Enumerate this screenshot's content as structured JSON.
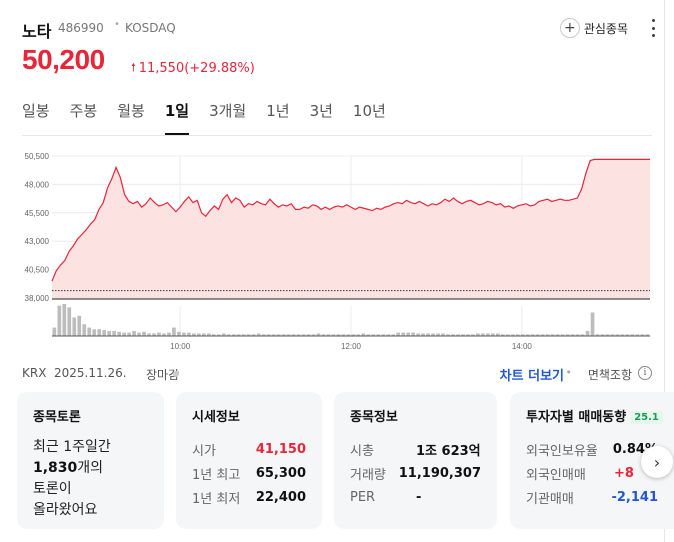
{
  "stock": {
    "name": "노타",
    "code": "486990",
    "market": "KOSDAQ",
    "price": "50,200",
    "change": "11,550(+29.88%)",
    "up_color": "#e8263a"
  },
  "header": {
    "favorite_label": "관심종목",
    "plus_icon": "+"
  },
  "tabs": [
    {
      "label": "일봉",
      "active": false
    },
    {
      "label": "주봉",
      "active": false
    },
    {
      "label": "월봉",
      "active": false
    },
    {
      "label": "1일",
      "active": true
    },
    {
      "label": "3개월",
      "active": false
    },
    {
      "label": "1년",
      "active": false
    },
    {
      "label": "3년",
      "active": false
    },
    {
      "label": "10년",
      "active": false
    }
  ],
  "meta": {
    "exchange": "KRX",
    "date": "2025.11.26.",
    "status": "장마감",
    "more_chart": "차트 더보기",
    "disclaimer": "면책조항",
    "info_icon": "i"
  },
  "chart_data": {
    "type": "area",
    "y_ticks": [
      "50,500",
      "48,000",
      "45,500",
      "43,000",
      "40,500",
      "38,000"
    ],
    "ylim": [
      38000,
      50500
    ],
    "x_ticks": [
      "10:00",
      "12:00",
      "14:00"
    ],
    "prev_close": 38650,
    "series": [
      {
        "values": [
          39500,
          40400,
          40900,
          41300,
          42100,
          42600,
          43200,
          43600,
          44000,
          44500,
          44900,
          45800,
          46400,
          47700,
          48500,
          49500,
          48600,
          47100,
          46500,
          46300,
          46500,
          46000,
          46300,
          46800,
          46400,
          46100,
          46200,
          46400,
          46000,
          45600,
          46000,
          46500,
          46900,
          46400,
          46600,
          45500,
          45200,
          45700,
          46100,
          45800,
          46700,
          47100,
          46400,
          46800,
          46600,
          46000,
          46300,
          46200,
          46500,
          46300,
          46200,
          46700,
          46300,
          46000,
          46200,
          46100,
          46300,
          45800,
          45800,
          46000,
          45900,
          46200,
          46100,
          45800,
          46000,
          45800,
          46000,
          46100,
          46000,
          46200,
          46000,
          45800,
          46000,
          45900,
          45800,
          45700,
          45900,
          45800,
          46000,
          46100,
          46300,
          46400,
          46300,
          46600,
          46400,
          46300,
          46500,
          46300,
          46100,
          46300,
          46200,
          46400,
          46700,
          46500,
          46800,
          46500,
          46300,
          46500,
          46600,
          46400,
          46200,
          46300,
          46500,
          46400,
          46200,
          46300,
          46000,
          46100,
          45900,
          46100,
          46200,
          46300,
          46100,
          46200,
          46500,
          46600,
          46700,
          46500,
          46600,
          46700,
          46600,
          46600,
          46700,
          46800,
          47600,
          49000,
          50100,
          50200,
          50200,
          50200,
          50200,
          50200,
          50200,
          50200,
          50200,
          50200,
          50200,
          50200,
          50200,
          50200,
          50200
        ]
      }
    ],
    "volume": [
      10,
      36,
      38,
      34,
      22,
      24,
      14,
      10,
      8,
      8,
      7,
      6,
      6,
      5,
      4,
      4,
      6,
      4,
      5,
      3,
      3,
      4,
      3,
      4,
      10,
      5,
      4,
      4,
      3,
      3,
      3,
      3,
      2,
      2,
      3,
      2,
      2,
      2,
      2,
      2,
      2,
      3,
      2,
      2,
      2,
      2,
      2,
      2,
      2,
      2,
      2,
      2,
      2,
      3,
      2,
      2,
      2,
      2,
      2,
      2,
      2,
      2,
      3,
      2,
      2,
      2,
      2,
      2,
      2,
      4,
      4,
      4,
      4,
      3,
      3,
      3,
      3,
      3,
      3,
      2,
      2,
      2,
      2,
      2,
      2,
      3,
      3,
      3,
      3,
      3,
      2,
      2,
      2,
      2,
      2,
      2,
      2,
      2,
      2,
      2,
      2,
      2,
      2,
      2,
      2,
      2,
      2,
      6,
      28,
      2,
      2,
      2,
      2,
      2,
      2,
      2,
      2,
      2,
      2,
      2
    ]
  },
  "cards": {
    "discussion": {
      "title": "종목토론",
      "line1": "최근 1주일간",
      "count": "1,830",
      "line2_suffix": "개의",
      "line3": "토론이",
      "line4": "올라왔어요"
    },
    "market_info": {
      "title": "시세정보",
      "rows": [
        {
          "key": "시가",
          "value": "41,150"
        },
        {
          "key": "1년 최고",
          "value": "65,300"
        },
        {
          "key": "1년 최저",
          "value": "22,400"
        }
      ]
    },
    "stock_info": {
      "title": "종목정보",
      "rows": [
        {
          "key": "시총",
          "value": "1조 623억"
        },
        {
          "key": "거래량",
          "value": "11,190,307"
        },
        {
          "key": "PER",
          "value": "-"
        }
      ]
    },
    "investor": {
      "title": "투자자별 매매동향",
      "badge": "25.1",
      "rows": [
        {
          "key": "외국인보유율",
          "value": "0.84%"
        },
        {
          "key": "외국인매매",
          "value": "+8"
        },
        {
          "key": "기관매매",
          "value": "-2,141"
        }
      ]
    }
  }
}
